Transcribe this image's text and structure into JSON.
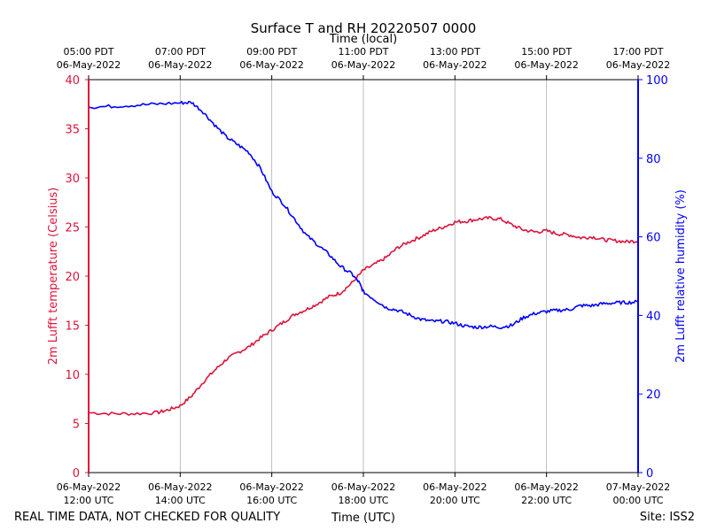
{
  "chart_data": {
    "type": "line",
    "title": "Surface T and RH 20220507 0000",
    "top_axis_title": "Time (local)",
    "xlabel": "Time (UTC)",
    "ylabel_left": "2m Lufft temperature (Celsius)",
    "ylabel_right": "2m Lufft relative humidity (%)",
    "footer_left": "REAL TIME DATA, NOT CHECKED FOR QUALITY",
    "footer_right": "Site: ISS2",
    "grid": "vertical",
    "x_range_hours_utc": [
      12,
      24
    ],
    "ylim_left": [
      0,
      40
    ],
    "ylim_right": [
      0,
      100
    ],
    "left_axis_color": "#dc143c",
    "right_axis_color": "#0000ff",
    "y_ticks_left": [
      "0",
      "5",
      "10",
      "15",
      "20",
      "25",
      "30",
      "35",
      "40"
    ],
    "y_ticks_right": [
      "0",
      "20",
      "40",
      "60",
      "80",
      "100"
    ],
    "x_ticks_bottom": [
      {
        "hour": 12,
        "date": "06-May-2022",
        "time": "12:00 UTC"
      },
      {
        "hour": 14,
        "date": "06-May-2022",
        "time": "14:00 UTC"
      },
      {
        "hour": 16,
        "date": "06-May-2022",
        "time": "16:00 UTC"
      },
      {
        "hour": 18,
        "date": "06-May-2022",
        "time": "18:00 UTC"
      },
      {
        "hour": 20,
        "date": "06-May-2022",
        "time": "20:00 UTC"
      },
      {
        "hour": 22,
        "date": "06-May-2022",
        "time": "22:00 UTC"
      },
      {
        "hour": 24,
        "date": "07-May-2022",
        "time": "00:00 UTC"
      }
    ],
    "x_ticks_top": [
      {
        "hour": 12,
        "time": "05:00 PDT",
        "date": "06-May-2022"
      },
      {
        "hour": 14,
        "time": "07:00 PDT",
        "date": "06-May-2022"
      },
      {
        "hour": 16,
        "time": "09:00 PDT",
        "date": "06-May-2022"
      },
      {
        "hour": 18,
        "time": "11:00 PDT",
        "date": "06-May-2022"
      },
      {
        "hour": 20,
        "time": "13:00 PDT",
        "date": "06-May-2022"
      },
      {
        "hour": 22,
        "time": "15:00 PDT",
        "date": "06-May-2022"
      },
      {
        "hour": 24,
        "time": "17:00 PDT",
        "date": "06-May-2022"
      }
    ],
    "series": [
      {
        "name": "2m Lufft temperature",
        "axis": "left",
        "color": "#dc143c",
        "x": [
          12.0,
          12.5,
          13.0,
          13.5,
          13.75,
          14.0,
          14.25,
          14.5,
          14.75,
          15.0,
          15.25,
          15.5,
          15.75,
          16.0,
          16.25,
          16.5,
          16.75,
          17.0,
          17.25,
          17.5,
          17.75,
          18.0,
          18.25,
          18.5,
          18.75,
          19.0,
          19.25,
          19.5,
          19.75,
          20.0,
          20.25,
          20.5,
          20.75,
          21.0,
          21.25,
          21.5,
          21.75,
          22.0,
          22.25,
          22.5,
          22.75,
          23.0,
          23.25,
          23.5,
          23.75,
          24.0
        ],
        "y": [
          6.1,
          6.0,
          6.0,
          6.1,
          6.4,
          6.8,
          7.8,
          9.2,
          10.4,
          11.5,
          12.2,
          12.8,
          13.7,
          14.5,
          15.3,
          16.1,
          16.6,
          17.2,
          17.9,
          18.3,
          19.3,
          20.6,
          21.2,
          21.9,
          22.9,
          23.5,
          24.0,
          24.6,
          25.0,
          25.5,
          25.6,
          25.8,
          25.9,
          25.8,
          25.2,
          24.7,
          24.5,
          24.6,
          24.3,
          24.2,
          23.9,
          24.0,
          23.7,
          23.6,
          23.5,
          23.6
        ]
      },
      {
        "name": "2m Lufft relative humidity",
        "axis": "right",
        "color": "#0000ff",
        "x": [
          12.0,
          12.5,
          13.0,
          13.5,
          14.0,
          14.25,
          14.5,
          14.75,
          15.0,
          15.25,
          15.5,
          15.75,
          16.0,
          16.25,
          16.5,
          16.75,
          17.0,
          17.25,
          17.5,
          17.75,
          17.9,
          18.0,
          18.25,
          18.5,
          18.75,
          19.0,
          19.25,
          19.5,
          19.75,
          20.0,
          20.25,
          20.5,
          20.75,
          21.0,
          21.25,
          21.5,
          21.75,
          22.0,
          22.25,
          22.5,
          22.75,
          23.0,
          23.25,
          23.5,
          23.75,
          24.0
        ],
        "y": [
          93,
          93.2,
          93.5,
          93.8,
          94.1,
          94.2,
          91.8,
          88.5,
          85.5,
          83.5,
          81.5,
          77.5,
          71.5,
          68.5,
          64.5,
          60.5,
          58.0,
          55.5,
          52.5,
          50.5,
          48.5,
          46.0,
          44.0,
          42.0,
          41.3,
          40.2,
          39.0,
          38.5,
          38.5,
          38.0,
          37.2,
          37.0,
          37.2,
          37.0,
          37.5,
          39.5,
          40.5,
          41.0,
          41.3,
          41.5,
          42.5,
          42.5,
          43.0,
          43.2,
          43.3,
          43.4
        ]
      }
    ]
  }
}
